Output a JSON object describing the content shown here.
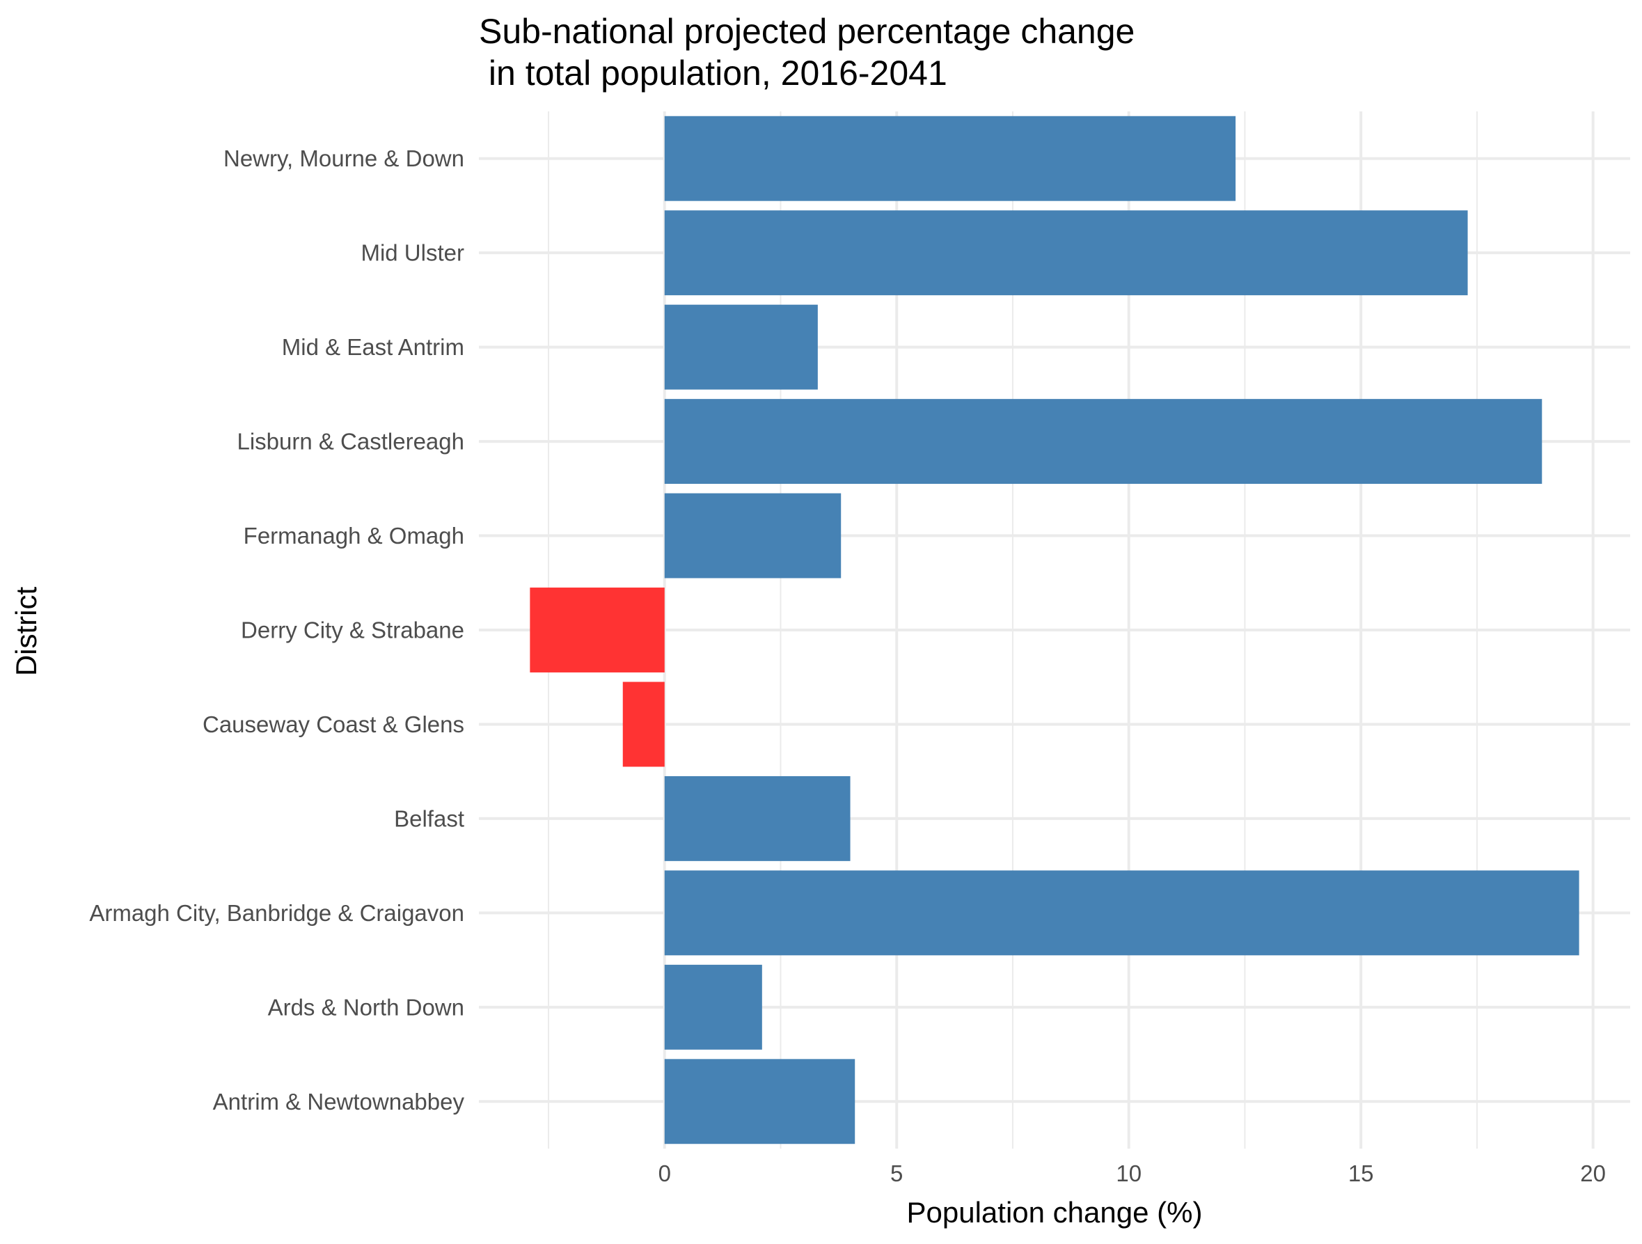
{
  "chart_data": {
    "type": "bar",
    "orientation": "horizontal",
    "title_lines": [
      "Sub-national projected percentage change",
      " in total population, 2016-2041"
    ],
    "xlabel": "Population change (%)",
    "ylabel": "District",
    "xlim": [
      -4.0,
      20.8
    ],
    "xticks": [
      0,
      5,
      10,
      15,
      20
    ],
    "grid": true,
    "legend": "none",
    "colors": {
      "positive": "#4682B4",
      "negative": "#FF3333"
    },
    "categories": [
      "Newry, Mourne & Down",
      "Mid Ulster",
      "Mid & East Antrim",
      "Lisburn & Castlereagh",
      "Fermanagh & Omagh",
      "Derry City & Strabane",
      "Causeway Coast & Glens",
      "Belfast",
      "Armagh City, Banbridge & Craigavon",
      "Ards & North Down",
      "Antrim & Newtownabbey"
    ],
    "values": [
      12.3,
      17.3,
      3.3,
      18.9,
      3.8,
      -2.9,
      -0.9,
      4.0,
      19.7,
      2.1,
      4.1
    ]
  }
}
